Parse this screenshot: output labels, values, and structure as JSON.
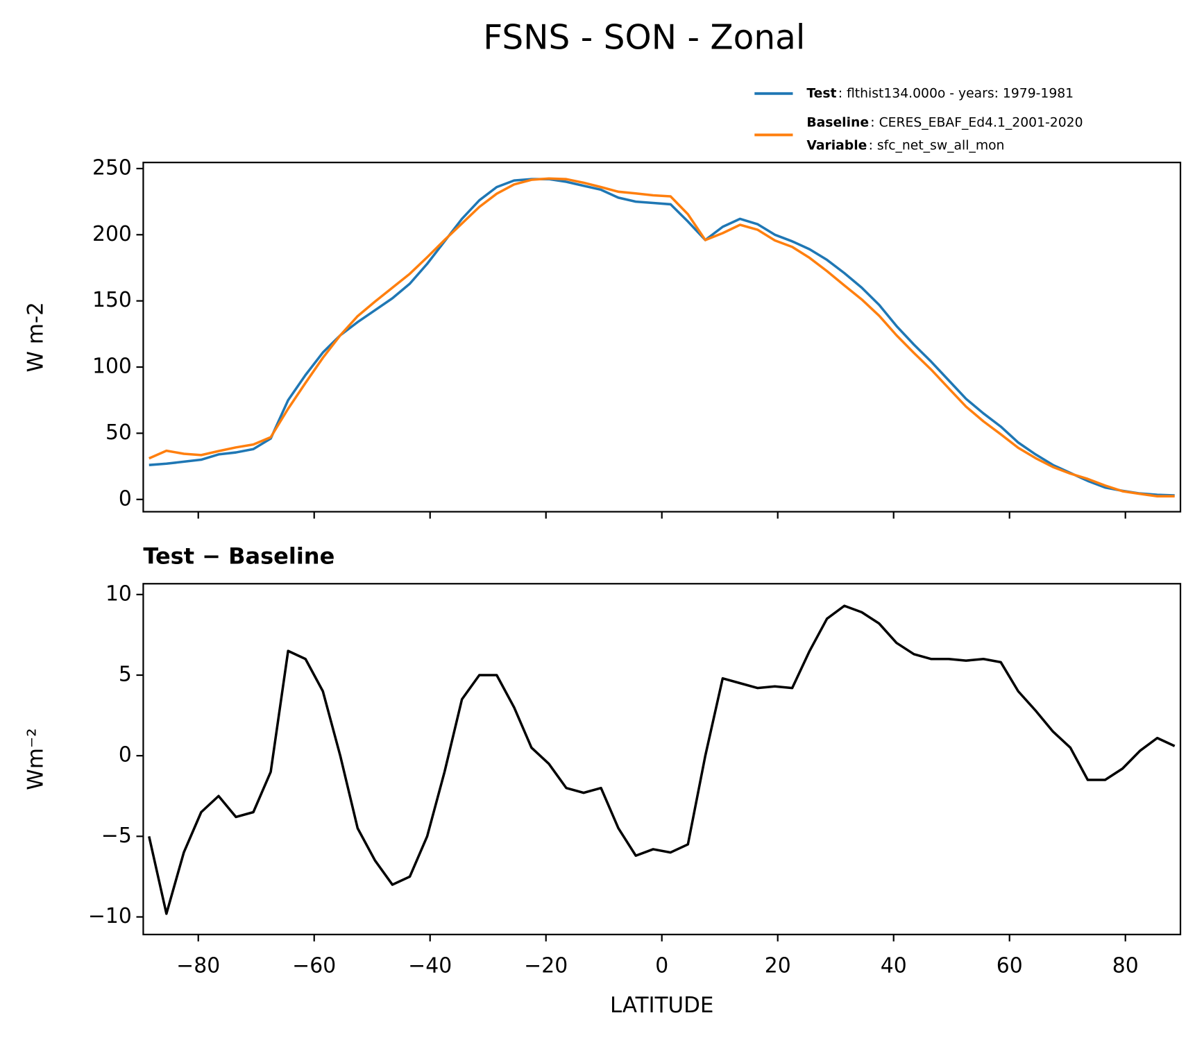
{
  "title": "FSNS - SON - Zonal",
  "chart_data": [
    {
      "type": "line",
      "ylabel": "W m-2",
      "legend": "upper right",
      "x": [
        -88.5,
        -85.5,
        -82.5,
        -79.5,
        -76.5,
        -73.5,
        -70.5,
        -67.5,
        -64.5,
        -61.5,
        -58.5,
        -55.5,
        -52.5,
        -49.5,
        -46.5,
        -43.5,
        -40.5,
        -37.5,
        -34.5,
        -31.5,
        -28.5,
        -25.5,
        -22.5,
        -19.5,
        -16.5,
        -13.5,
        -10.5,
        -7.5,
        -4.5,
        -1.5,
        1.5,
        4.5,
        7.5,
        10.5,
        13.5,
        16.5,
        19.5,
        22.5,
        25.5,
        28.5,
        31.5,
        34.5,
        37.5,
        40.5,
        43.5,
        46.5,
        49.5,
        52.5,
        55.5,
        58.5,
        61.5,
        64.5,
        67.5,
        70.5,
        73.5,
        76.5,
        79.5,
        82.5,
        85.5,
        88.5
      ],
      "series": [
        {
          "name": "Test",
          "label": ": flthist134.000o - years: 1979-1981",
          "color": "#1f77b4",
          "values": [
            26,
            27,
            28.5,
            30,
            34,
            35.5,
            38,
            46,
            75,
            94,
            111,
            124,
            134,
            143,
            152,
            163,
            178,
            195,
            212,
            226,
            236,
            241,
            242,
            242,
            240,
            237,
            234,
            228,
            225,
            224,
            223,
            210,
            196,
            206,
            212,
            208,
            200,
            195,
            189,
            181,
            171,
            160,
            147,
            131,
            117,
            104,
            90,
            76,
            65,
            55,
            43,
            34,
            26,
            20,
            14,
            9,
            6.5,
            4.5,
            3.5,
            3
          ]
        },
        {
          "name": "Baseline",
          "label": ": CERES_EBAF_Ed4.1_2001-2020",
          "color": "#ff7f0e",
          "values": [
            31,
            36.8,
            34.5,
            33.5,
            36.5,
            39.3,
            41.5,
            47,
            68.5,
            88,
            107,
            124,
            138.5,
            149.5,
            160,
            170.5,
            183,
            196,
            208.5,
            221,
            231,
            238,
            241.5,
            242.5,
            242,
            239.3,
            236,
            232.5,
            231.2,
            229.8,
            229,
            215.5,
            196,
            201.2,
            207.5,
            203.8,
            195.7,
            190.8,
            182.5,
            172.5,
            161.7,
            151.1,
            138.8,
            124,
            110.7,
            98,
            84,
            70.1,
            59,
            49.2,
            39,
            31.2,
            24.5,
            19.5,
            15.5,
            10.5,
            6.2,
            4.2,
            2.4,
            2.4
          ]
        }
      ],
      "legend_note": {
        "name": "Variable",
        "label": ": sfc_net_sw_all_mon"
      },
      "xlim": [
        -89.5,
        89.5
      ],
      "xticks": [
        -80,
        -60,
        -40,
        -20,
        0,
        20,
        40,
        60,
        80
      ],
      "ylim": [
        -9.3,
        254.6
      ],
      "yticks": [
        0,
        50,
        100,
        150,
        200,
        250
      ]
    },
    {
      "type": "line",
      "title": "Test − Baseline",
      "xlabel": "LATITUDE",
      "ylabel": "Wm⁻²",
      "color": "#000000",
      "x": [
        -88.5,
        -85.5,
        -82.5,
        -79.5,
        -76.5,
        -73.5,
        -70.5,
        -67.5,
        -64.5,
        -61.5,
        -58.5,
        -55.5,
        -52.5,
        -49.5,
        -46.5,
        -43.5,
        -40.5,
        -37.5,
        -34.5,
        -31.5,
        -28.5,
        -25.5,
        -22.5,
        -19.5,
        -16.5,
        -13.5,
        -10.5,
        -7.5,
        -4.5,
        -1.5,
        1.5,
        4.5,
        7.5,
        10.5,
        13.5,
        16.5,
        19.5,
        22.5,
        25.5,
        28.5,
        31.5,
        34.5,
        37.5,
        40.5,
        43.5,
        46.5,
        49.5,
        52.5,
        55.5,
        58.5,
        61.5,
        64.5,
        67.5,
        70.5,
        73.5,
        76.5,
        79.5,
        82.5,
        85.5,
        88.5
      ],
      "values": [
        -5,
        -9.8,
        -6,
        -3.5,
        -2.5,
        -3.8,
        -3.5,
        -1,
        6.5,
        6,
        4,
        0,
        -4.5,
        -6.5,
        -8,
        -7.5,
        -5,
        -1,
        3.5,
        5,
        5,
        3,
        0.5,
        -0.5,
        -2,
        -2.3,
        -2,
        -4.5,
        -6.2,
        -5.8,
        -6,
        -5.5,
        0,
        4.8,
        4.5,
        4.2,
        4.3,
        4.2,
        6.5,
        8.5,
        9.3,
        8.9,
        8.2,
        7,
        6.3,
        6,
        6,
        5.9,
        6,
        5.8,
        4,
        2.8,
        1.5,
        0.5,
        -1.5,
        -1.5,
        -0.8,
        0.3,
        1.1,
        0.6
      ],
      "xlim": [
        -89.5,
        89.5
      ],
      "xticks": [
        {
          "value": -80,
          "label": "−80"
        },
        {
          "value": -60,
          "label": "−60"
        },
        {
          "value": -40,
          "label": "−40"
        },
        {
          "value": -20,
          "label": "−20"
        },
        0,
        20,
        40,
        60,
        80
      ],
      "ylim": [
        -11.09,
        10.67
      ],
      "yticks": [
        {
          "value": -10,
          "label": "−10"
        },
        {
          "value": -5,
          "label": "−5"
        },
        0,
        5,
        10
      ]
    }
  ]
}
